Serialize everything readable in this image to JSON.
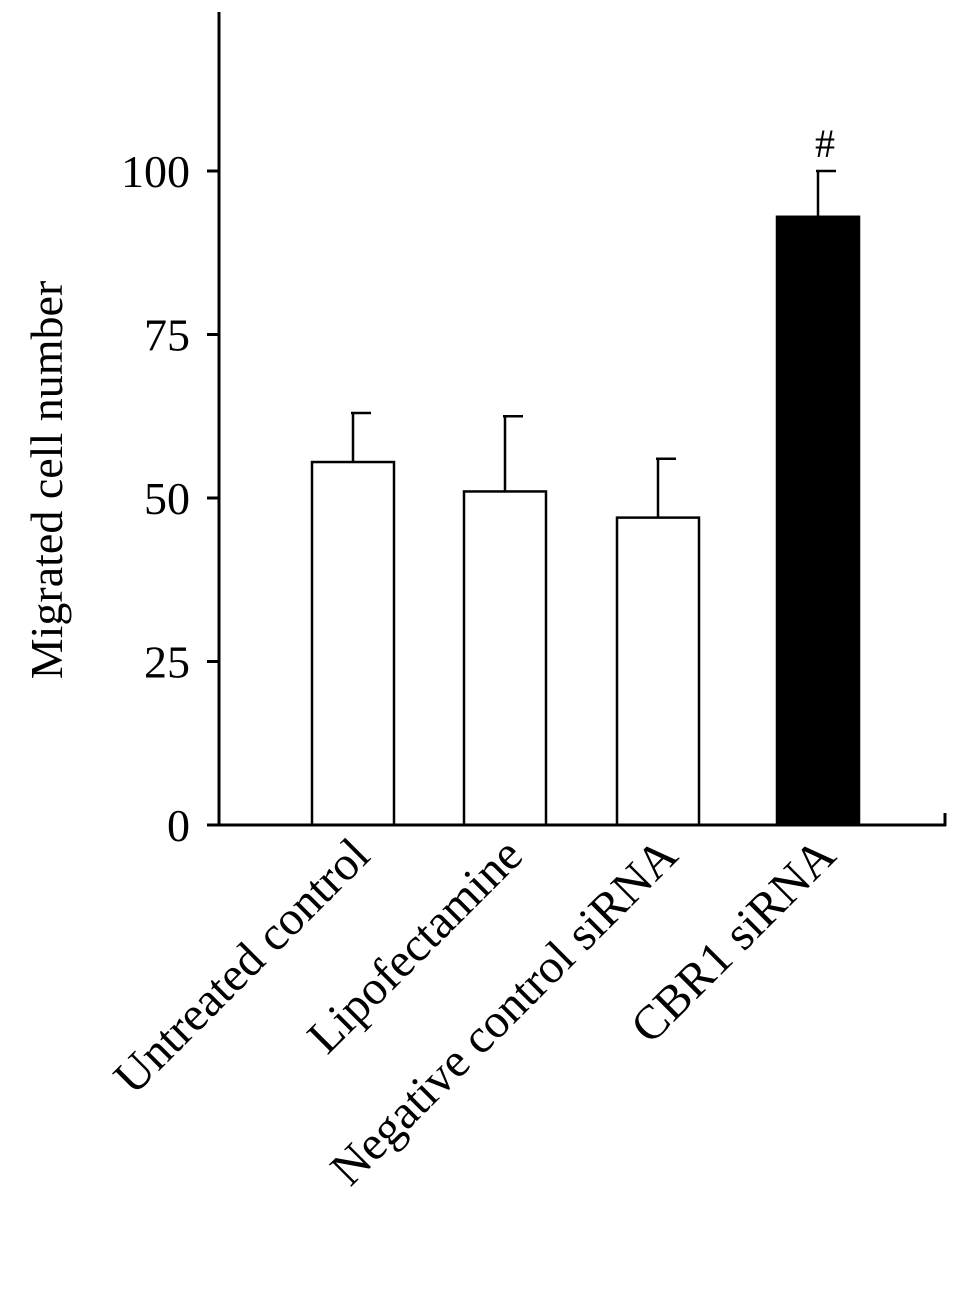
{
  "chart_data": {
    "type": "bar",
    "title": "",
    "xlabel": "",
    "ylabel": "Migrated cell number",
    "categories": [
      "Untreated control",
      "Lipofectamine",
      "Negative control siRNA",
      "CBR1 siRNA"
    ],
    "values": [
      55.5,
      51,
      47,
      93
    ],
    "error_upper": [
      7.5,
      11.5,
      9,
      7
    ],
    "annotations": [
      "",
      "",
      "",
      "#"
    ],
    "bar_colors": [
      "#ffffff",
      "#ffffff",
      "#ffffff",
      "#000000"
    ],
    "yticks": [
      "0",
      "25",
      "50",
      "75",
      "100"
    ],
    "ylim": [
      0,
      124
    ],
    "grid": false,
    "legend": "none"
  }
}
